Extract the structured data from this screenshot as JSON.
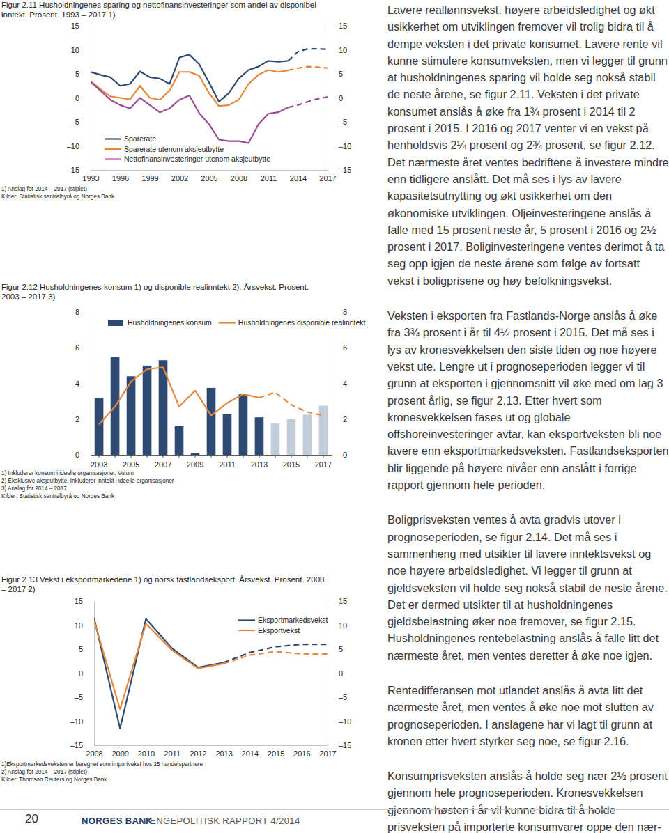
{
  "chart_data": [
    {
      "type": "line",
      "title": "Figur 2.11 Husholdningenes sparing og nettofinansinvesteringer som andel av disponibel inntekt. Prosent. 1993 – 2017 1)",
      "x": [
        1993,
        1994,
        1995,
        1996,
        1997,
        1998,
        1999,
        2000,
        2001,
        2002,
        2003,
        2004,
        2005,
        2006,
        2007,
        2008,
        2009,
        2010,
        2011,
        2012,
        2013,
        2014,
        2015,
        2016,
        2017
      ],
      "xlim": [
        1993,
        2017
      ],
      "xticks": [
        1993,
        1996,
        1999,
        2002,
        2005,
        2008,
        2011,
        2014,
        2017
      ],
      "ylim": [
        -15,
        15
      ],
      "yticks": [
        {
          "value": -15,
          "label": "–15"
        },
        {
          "value": -10,
          "label": "–10"
        },
        {
          "value": -5,
          "label": "–5"
        },
        0,
        5,
        10,
        15
      ],
      "grid": false,
      "legend": "lower left",
      "series": [
        {
          "name": "Sparerate",
          "color": "#2f4a72",
          "line_style": "solid",
          "values": [
            5.4,
            4.8,
            4.3,
            2.5,
            2.9,
            5.5,
            4.3,
            4.0,
            2.9,
            8.4,
            9.0,
            7.0,
            3.2,
            -0.8,
            1.0,
            4.0,
            5.8,
            6.5,
            7.7,
            7.5,
            7.7,
            null,
            null,
            null,
            null
          ]
        },
        {
          "name": "Sparerate utenom aksjeutbytte",
          "color": "#e5883b",
          "line_style": "solid",
          "values": [
            3.5,
            1.8,
            0.3,
            0.0,
            -0.3,
            2.5,
            0.0,
            -0.4,
            1.5,
            5.4,
            5.4,
            4.6,
            1.0,
            -1.7,
            -1.5,
            -0.4,
            2.9,
            4.8,
            5.8,
            5.4,
            5.7,
            null,
            null,
            null,
            null
          ]
        },
        {
          "name": "Nettofinansinvesteringer utenom aksjeutbytte",
          "color": "#9c4a98",
          "line_style": "solid",
          "values": [
            3.3,
            1.5,
            -0.4,
            -1.5,
            -2.2,
            0.0,
            -1.5,
            -3.0,
            -2.2,
            -0.4,
            0.5,
            -3.2,
            -5.5,
            -8.7,
            -9.0,
            -9.0,
            -9.4,
            -5.5,
            -3.3,
            -3.0,
            -2.0,
            null,
            null,
            null,
            null
          ]
        },
        {
          "color": "#2f4a72",
          "line_style": "dashed",
          "values": [
            null,
            null,
            null,
            null,
            null,
            null,
            null,
            null,
            null,
            null,
            null,
            null,
            null,
            null,
            null,
            null,
            null,
            null,
            null,
            null,
            7.7,
            9.6,
            10.2,
            10.2,
            10.1
          ]
        },
        {
          "color": "#e5883b",
          "line_style": "dashed",
          "values": [
            null,
            null,
            null,
            null,
            null,
            null,
            null,
            null,
            null,
            null,
            null,
            null,
            null,
            null,
            null,
            null,
            null,
            null,
            null,
            null,
            5.7,
            6.2,
            6.5,
            6.4,
            6.2
          ]
        },
        {
          "color": "#9c4a98",
          "line_style": "dashed",
          "values": [
            null,
            null,
            null,
            null,
            null,
            null,
            null,
            null,
            null,
            null,
            null,
            null,
            null,
            null,
            null,
            null,
            null,
            null,
            null,
            null,
            -2.0,
            -1.5,
            -0.8,
            -0.2,
            0.2
          ]
        }
      ],
      "annotations": [
        "1) Anslag for 2014 – 2017 (stiplet)",
        "Kilder: Statistisk sentralbyrå og Norges Bank"
      ]
    },
    {
      "type": "bar",
      "title": "Figur 2.12 Husholdningenes konsum 1) og disponible realinntekt 2). Årsvekst. Prosent. 2003 – 2017 3)",
      "categories": [
        "2003",
        null,
        "2005",
        null,
        "2007",
        null,
        "2009",
        null,
        "2011",
        null,
        "2013",
        null,
        "2015",
        null,
        "2017"
      ],
      "ylim": [
        0,
        8
      ],
      "yticks": [
        0,
        2,
        4,
        6,
        8
      ],
      "grid": false,
      "legend": "upper left",
      "series": [
        {
          "name": "Husholdningenes konsum",
          "type": "bar",
          "color": "#2f4a72",
          "colors": [
            "#2f4a72",
            "#2f4a72",
            "#2f4a72",
            "#2f4a72",
            "#2f4a72",
            "#2f4a72",
            "#2f4a72",
            "#2f4a72",
            "#2f4a72",
            "#2f4a72",
            "#2f4a72",
            "#c2cddc",
            "#c2cddc",
            "#c2cddc",
            "#c2cddc"
          ],
          "values": [
            3.2,
            5.5,
            4.4,
            5.0,
            5.3,
            1.6,
            0.1,
            3.75,
            2.3,
            3.4,
            2.1,
            1.75,
            2.0,
            2.25,
            2.75
          ]
        },
        {
          "name": "Husholdningenes disponible realinntekt",
          "type": "line",
          "color": "#e5883b",
          "line_style": "solid",
          "values": [
            1.7,
            2.7,
            4.1,
            4.8,
            4.9,
            2.7,
            3.6,
            2.2,
            2.9,
            3.4,
            3.2,
            null,
            null,
            null,
            null
          ]
        },
        {
          "type": "line",
          "color": "#e5883b",
          "line_style": "dashed",
          "values": [
            null,
            null,
            null,
            null,
            null,
            null,
            null,
            null,
            null,
            null,
            3.2,
            3.5,
            2.8,
            2.4,
            2.2
          ]
        }
      ],
      "annotations": [
        "1) Inkluderer konsum i ideelle organisasjoner. Volum",
        "2) Eksklusive aksjeutbytte. Inkluderer inntekt i ideelle organisasjoner",
        "3) Anslag for 2014 – 2017",
        "Kilder: Statistisk sentralbyrå og Norges Bank"
      ]
    },
    {
      "type": "line",
      "title": "Figur 2.13 Vekst i eksportmarkedene 1) og norsk fastlandseksport. Årsvekst. Prosent. 2008 – 2017 2)",
      "x": [
        2008,
        2009,
        2010,
        2011,
        2012,
        2013,
        2014,
        2015,
        2016,
        2017
      ],
      "xlim": [
        2008,
        2017
      ],
      "xticks": [
        2008,
        2009,
        2010,
        2011,
        2012,
        2013,
        2014,
        2015,
        2016,
        2017
      ],
      "ylim": [
        -15,
        15
      ],
      "yticks": [
        {
          "value": -15,
          "label": "–15"
        },
        {
          "value": -10,
          "label": "–10"
        },
        {
          "value": -5,
          "label": "–5"
        },
        0,
        5,
        10,
        15
      ],
      "grid": false,
      "legend": "upper right",
      "series": [
        {
          "name": "Eksportmarkedsvekst",
          "color": "#2f4a72",
          "line_style": "solid",
          "values": [
            11.5,
            -11.5,
            11.3,
            5.2,
            1.2,
            2.2,
            null,
            null,
            null,
            null
          ]
        },
        {
          "name": "Eksportvekst",
          "color": "#e5883b",
          "line_style": "solid",
          "values": [
            11.0,
            -7.5,
            10.3,
            4.8,
            1.0,
            2.0,
            null,
            null,
            null,
            null
          ]
        },
        {
          "color": "#2f4a72",
          "line_style": "dashed",
          "values": [
            null,
            null,
            null,
            null,
            null,
            2.2,
            4.3,
            5.5,
            6.0,
            6.0
          ]
        },
        {
          "color": "#e5883b",
          "line_style": "dashed",
          "values": [
            null,
            null,
            null,
            null,
            null,
            2.0,
            3.75,
            4.5,
            4.0,
            4.0
          ]
        }
      ],
      "annotations": [
        "1)Eksportmarkedsveksten er beregnet som importvekst hos 25 handelspartnere",
        "2) Anslag for 2014 – 2017 (stiplet)",
        "Kilder: Thomson Reuters og Norges Bank"
      ]
    }
  ],
  "page": {
    "paragraphs": [
      "Lavere reallønnsvekst, høyere arbeidsledighet og økt usikkerhet om utviklingen fremover vil trolig bidra til å dempe veksten i det private konsumet. Lavere rente vil kunne stimulere konsumveksten, men vi legger til grunn at husholdningenes sparing vil holde seg nokså stabil de neste årene, se figur 2.11. Veksten i det private konsumet anslås å øke fra 1¾ prosent i 2014 til 2 prosent i 2015. I 2016 og 2017 venter vi en vekst på henholdsvis 2¼ prosent og 2¾ prosent, se figur 2.12. Det nærmeste året ventes bedriftene å investere mindre enn tidligere anslått. Det må ses i lys av lavere kapasitetsutnytting og økt usikkerhet om den økonomiske utviklingen. Oljeinvesteringene anslås å falle med 15 prosent neste år, 5 prosent i 2016 og 2½ prosent i 2017. Boliginvesteringene ventes derimot å ta seg opp igjen de neste årene som følge av fortsatt vekst i boligprisene og høy befolkningsvekst.",
      "Veksten i eksporten fra Fastlands-Norge anslås å øke fra 3¾ prosent i år til 4½ prosent i 2015. Det må ses i lys av kronesvekkelsen den siste tiden og noe høyere vekst ute. Lengre ut i prognoseperioden legger vi til grunn at eksporten i gjennomsnitt vil øke med om lag 3 prosent årlig, se figur 2.13. Etter hvert som kronesvekkelsen fases ut og globale offshoreinvesteringer avtar, kan eksportveksten bli noe lavere enn eksportmarkedsveksten. Fastlandseksporten blir liggende på høyere nivåer enn anslått i forrige rapport gjennom hele perioden.",
      "Boligprisveksten ventes å avta gradvis utover i prognoseperioden, se figur 2.14. Det må ses i sammenheng med utsikter til lavere inntektsvekst og noe høyere arbeidsledighet. Vi legger til grunn at gjeldsveksten vil holde seg nokså stabil de neste årene. Det er dermed utsikter til at husholdningenes gjeldsbelastning øker noe fremover, se figur 2.15. Husholdningenes rentebelastning anslås å falle litt det nærmeste året, men ventes deretter å øke noe igjen.",
      "Rentedifferansen mot utlandet anslås å avta litt det nærmeste året, men ventes å øke noe mot slutten av prognoseperioden. I anslagene har vi lagt til grunn at kronen etter hvert styrker seg noe, se figur 2.16.",
      "Konsumprisveksten anslås å holde seg nær 2½ prosent gjennom hele prognoseperioden. Kronesvekkelsen gjennom høsten i år vil kunne bidra til å holde prisveksten på importerte konsumvarer oppe den nær-"
    ],
    "footer": {
      "page_number": "20",
      "publisher": "NORGES BANK",
      "publication": "PENGEPOLITISK RAPPORT 4/2014"
    }
  }
}
